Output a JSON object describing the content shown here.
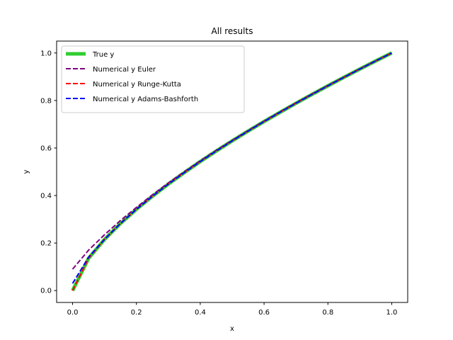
{
  "chart_data": {
    "type": "line",
    "title": "All results",
    "xlabel": "x",
    "ylabel": "y",
    "xlim": [
      -0.05,
      1.05
    ],
    "ylim": [
      -0.05,
      1.05
    ],
    "xticks": [
      0.0,
      0.2,
      0.4,
      0.6,
      0.8,
      1.0
    ],
    "yticks": [
      0.0,
      0.2,
      0.4,
      0.6,
      0.8,
      1.0
    ],
    "xtick_labels": [
      "0.0",
      "0.2",
      "0.4",
      "0.6",
      "0.8",
      "1.0"
    ],
    "ytick_labels": [
      "0.0",
      "0.2",
      "0.4",
      "0.6",
      "0.8",
      "1.0"
    ],
    "grid": false,
    "legend_position": "top-left",
    "x": [
      0,
      0.05,
      0.1,
      0.15,
      0.2,
      0.25,
      0.3,
      0.35,
      0.4,
      0.45,
      0.5,
      0.55,
      0.6,
      0.65,
      0.7,
      0.75,
      0.8,
      0.85,
      0.9,
      0.95,
      1.0
    ],
    "series": [
      {
        "name": "True y",
        "color": "#32cd32",
        "style": "solid",
        "values": [
          0.0,
          0.1357,
          0.2154,
          0.2823,
          0.342,
          0.3969,
          0.4481,
          0.4966,
          0.5429,
          0.5872,
          0.63,
          0.6713,
          0.7114,
          0.7503,
          0.7884,
          0.8255,
          0.8618,
          0.8973,
          0.9322,
          0.9664,
          1.0
        ]
      },
      {
        "name": "Numerical y Euler",
        "color": "#800080",
        "style": "dashed",
        "values": [
          0.09,
          0.17,
          0.235,
          0.295,
          0.35,
          0.403,
          0.453,
          0.5,
          0.546,
          0.59,
          0.632,
          0.673,
          0.713,
          0.752,
          0.79,
          0.827,
          0.863,
          0.898,
          0.933,
          0.967,
          1.0
        ]
      },
      {
        "name": "Numerical y Runge-Kutta",
        "color": "#ff0000",
        "style": "dashed",
        "values": [
          0.0,
          0.1357,
          0.2154,
          0.2823,
          0.342,
          0.3969,
          0.4481,
          0.4966,
          0.5429,
          0.5872,
          0.63,
          0.6713,
          0.7114,
          0.7503,
          0.7884,
          0.8255,
          0.8618,
          0.8973,
          0.9322,
          0.9664,
          1.0
        ]
      },
      {
        "name": "Numerical y Adams-Bashforth",
        "color": "#0000ff",
        "style": "dashed",
        "values": [
          0.03,
          0.14,
          0.2154,
          0.2823,
          0.342,
          0.3969,
          0.4481,
          0.4966,
          0.5429,
          0.5872,
          0.63,
          0.6713,
          0.7114,
          0.7503,
          0.7884,
          0.8255,
          0.8618,
          0.8973,
          0.9322,
          0.9664,
          1.0
        ]
      }
    ]
  }
}
